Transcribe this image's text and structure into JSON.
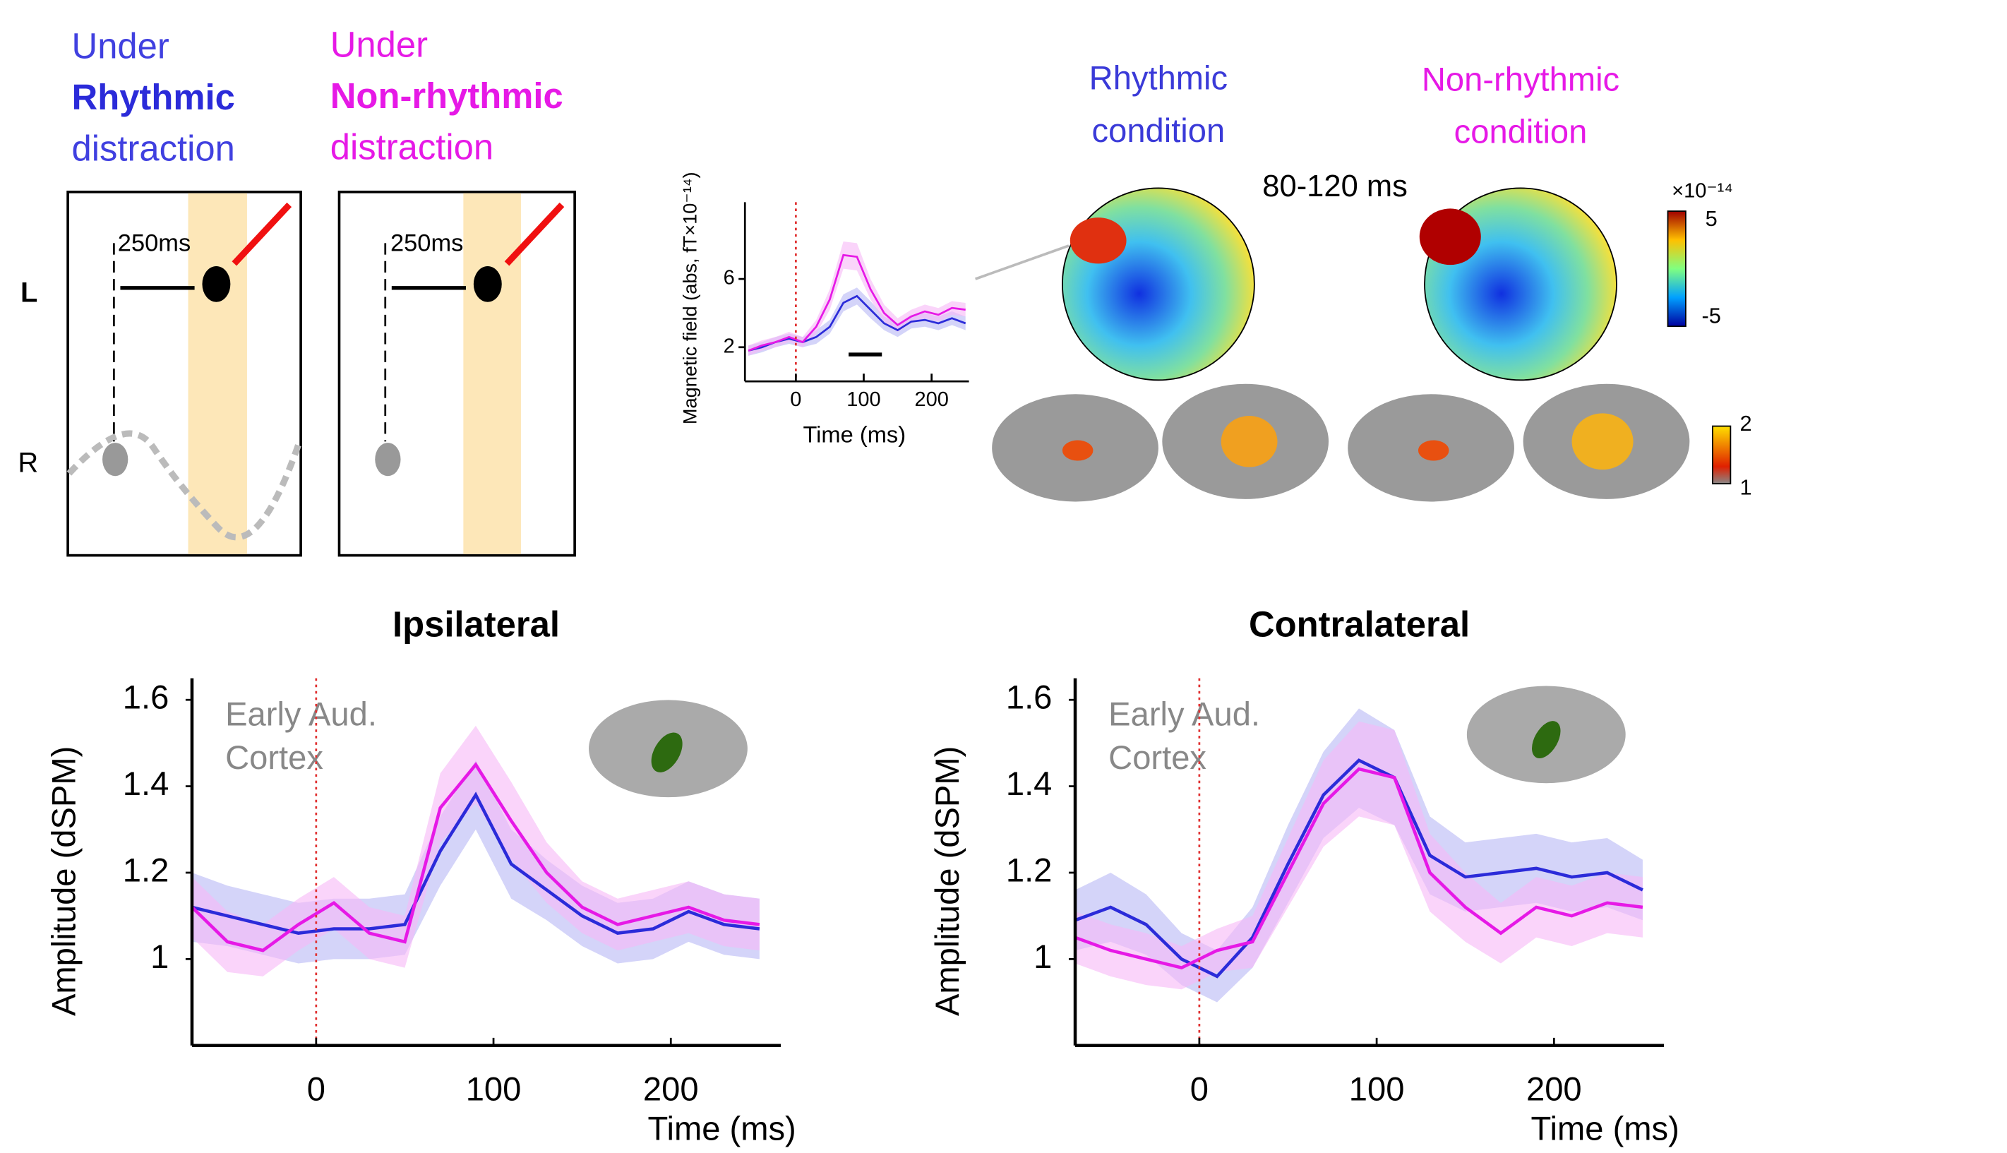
{
  "chart_data": [
    {
      "type": "line",
      "title": "Ipsilateral",
      "x_label": "Time (ms)",
      "y_label": "Amplitude  (dSPM)",
      "annotation": [
        "Early Aud.",
        "Cortex"
      ],
      "x": [
        -70,
        -50,
        -30,
        -10,
        10,
        30,
        50,
        70,
        90,
        110,
        130,
        150,
        170,
        190,
        210,
        230,
        250
      ],
      "series": [
        {
          "color": "#2b2bd9",
          "band_color": "#b8b8f5",
          "values": [
            1.12,
            1.1,
            1.08,
            1.06,
            1.07,
            1.07,
            1.08,
            1.25,
            1.38,
            1.22,
            1.16,
            1.1,
            1.06,
            1.07,
            1.11,
            1.08,
            1.07
          ],
          "lower": [
            1.04,
            1.03,
            1.01,
            0.99,
            1.0,
            1.0,
            1.01,
            1.17,
            1.3,
            1.14,
            1.09,
            1.03,
            0.99,
            1.0,
            1.04,
            1.01,
            1.0
          ],
          "upper": [
            1.2,
            1.17,
            1.15,
            1.13,
            1.14,
            1.14,
            1.15,
            1.33,
            1.46,
            1.3,
            1.23,
            1.17,
            1.13,
            1.14,
            1.18,
            1.15,
            1.14
          ]
        },
        {
          "color": "#e619e6",
          "band_color": "#f7b8f7",
          "values": [
            1.12,
            1.04,
            1.02,
            1.08,
            1.13,
            1.06,
            1.04,
            1.35,
            1.45,
            1.32,
            1.2,
            1.12,
            1.08,
            1.1,
            1.12,
            1.09,
            1.08
          ],
          "lower": [
            1.05,
            0.97,
            0.96,
            1.02,
            1.07,
            1.0,
            0.98,
            1.27,
            1.36,
            1.23,
            1.13,
            1.06,
            1.02,
            1.04,
            1.06,
            1.03,
            1.02
          ],
          "upper": [
            1.19,
            1.11,
            1.08,
            1.14,
            1.19,
            1.12,
            1.1,
            1.43,
            1.54,
            1.41,
            1.27,
            1.18,
            1.14,
            1.16,
            1.18,
            1.15,
            1.14
          ]
        }
      ],
      "reference_line": 0,
      "reference_color": "#e03030",
      "xlim": [
        -70,
        262
      ],
      "ylim": [
        0.8,
        1.65
      ],
      "xticks": [
        0,
        100,
        200
      ],
      "yticks": [
        1,
        1.2,
        1.4,
        1.6
      ]
    },
    {
      "type": "line",
      "title": "Contralateral",
      "x_label": "Time (ms)",
      "y_label": "Amplitude  (dSPM)",
      "annotation": [
        "Early Aud.",
        "Cortex"
      ],
      "x": [
        -70,
        -50,
        -30,
        -10,
        10,
        30,
        50,
        70,
        90,
        110,
        130,
        150,
        170,
        190,
        210,
        230,
        250
      ],
      "series": [
        {
          "color": "#2b2bd9",
          "band_color": "#b8b8f5",
          "values": [
            1.09,
            1.12,
            1.08,
            1.0,
            0.96,
            1.05,
            1.22,
            1.38,
            1.46,
            1.42,
            1.24,
            1.19,
            1.2,
            1.21,
            1.19,
            1.2,
            1.16
          ],
          "lower": [
            1.02,
            1.04,
            1.01,
            0.94,
            0.9,
            0.98,
            1.13,
            1.28,
            1.35,
            1.31,
            1.15,
            1.11,
            1.12,
            1.13,
            1.11,
            1.12,
            1.09
          ],
          "upper": [
            1.16,
            1.2,
            1.15,
            1.06,
            1.02,
            1.12,
            1.31,
            1.48,
            1.58,
            1.53,
            1.33,
            1.27,
            1.28,
            1.29,
            1.27,
            1.28,
            1.23
          ]
        },
        {
          "color": "#e619e6",
          "band_color": "#f7b8f7",
          "values": [
            1.05,
            1.02,
            1.0,
            0.98,
            1.02,
            1.04,
            1.2,
            1.36,
            1.44,
            1.42,
            1.2,
            1.12,
            1.06,
            1.12,
            1.1,
            1.13,
            1.12
          ],
          "lower": [
            0.99,
            0.96,
            0.94,
            0.93,
            0.97,
            0.98,
            1.12,
            1.26,
            1.33,
            1.31,
            1.11,
            1.04,
            0.99,
            1.05,
            1.03,
            1.06,
            1.05
          ],
          "upper": [
            1.11,
            1.08,
            1.06,
            1.03,
            1.07,
            1.1,
            1.28,
            1.46,
            1.55,
            1.53,
            1.29,
            1.2,
            1.13,
            1.19,
            1.17,
            1.2,
            1.19
          ]
        }
      ],
      "reference_line": 0,
      "reference_color": "#e03030",
      "xlim": [
        -70,
        262
      ],
      "ylim": [
        0.8,
        1.65
      ],
      "xticks": [
        0,
        100,
        200
      ],
      "yticks": [
        1,
        1.2,
        1.4,
        1.6
      ]
    },
    {
      "type": "line",
      "x_label": "Time (ms)",
      "y_label": "Magnetic field (abs, fT×10⁻¹⁴)",
      "x": [
        -70,
        -50,
        -30,
        -10,
        10,
        30,
        50,
        70,
        90,
        110,
        130,
        150,
        170,
        190,
        210,
        230,
        250
      ],
      "series": [
        {
          "color": "#2b2bd9",
          "band_color": "#b8b8f5",
          "values": [
            1.8,
            2.0,
            2.3,
            2.5,
            2.3,
            2.6,
            3.2,
            4.6,
            5.0,
            4.2,
            3.4,
            3.0,
            3.5,
            3.6,
            3.4,
            3.7,
            3.4
          ],
          "lower": [
            1.5,
            1.7,
            2.0,
            2.2,
            2.0,
            2.2,
            2.8,
            4.1,
            4.5,
            3.7,
            3.0,
            2.6,
            3.1,
            3.2,
            3.0,
            3.3,
            3.0
          ],
          "upper": [
            2.1,
            2.3,
            2.6,
            2.8,
            2.6,
            3.0,
            3.6,
            5.1,
            5.5,
            4.7,
            3.8,
            3.4,
            3.9,
            4.0,
            3.8,
            4.1,
            3.8
          ]
        },
        {
          "color": "#e619e6",
          "band_color": "#f7b8f7",
          "values": [
            1.8,
            2.1,
            2.3,
            2.6,
            2.3,
            3.2,
            4.8,
            7.4,
            7.3,
            5.4,
            4.0,
            3.3,
            3.8,
            4.1,
            3.9,
            4.3,
            4.2
          ],
          "lower": [
            1.5,
            1.8,
            2.0,
            2.3,
            2.0,
            2.8,
            4.2,
            6.6,
            6.5,
            4.8,
            3.5,
            2.9,
            3.4,
            3.7,
            3.5,
            3.9,
            3.8
          ],
          "upper": [
            2.1,
            2.4,
            2.6,
            2.9,
            2.6,
            3.6,
            5.4,
            8.2,
            8.1,
            6.0,
            4.5,
            3.7,
            4.2,
            4.5,
            4.3,
            4.7,
            4.6
          ]
        }
      ],
      "reference_line": 0,
      "reference_color": "#e03030",
      "xlim": [
        -75,
        255
      ],
      "ylim": [
        0,
        10.5
      ],
      "xticks": [
        0,
        100,
        200
      ],
      "yticks": [
        2,
        6
      ]
    }
  ],
  "diagram": {
    "rhythmic": [
      "Under",
      "Rhythmic",
      "distraction"
    ],
    "non_rhythmic": [
      "Under",
      "Non-rhythmic",
      "distraction"
    ],
    "interval": [
      "250ms",
      "250ms"
    ],
    "rows": [
      "L",
      "R"
    ]
  },
  "topography": {
    "rhythmic": [
      "Rhythmic",
      "condition"
    ],
    "non_rhythmic": [
      "Non-rhythmic",
      "condition"
    ],
    "window": "80-120 ms",
    "field_scale": {
      "unit": "×10⁻¹⁴",
      "max": "5",
      "min": "-5"
    },
    "source_scale": {
      "max": "2",
      "min": "1"
    }
  }
}
